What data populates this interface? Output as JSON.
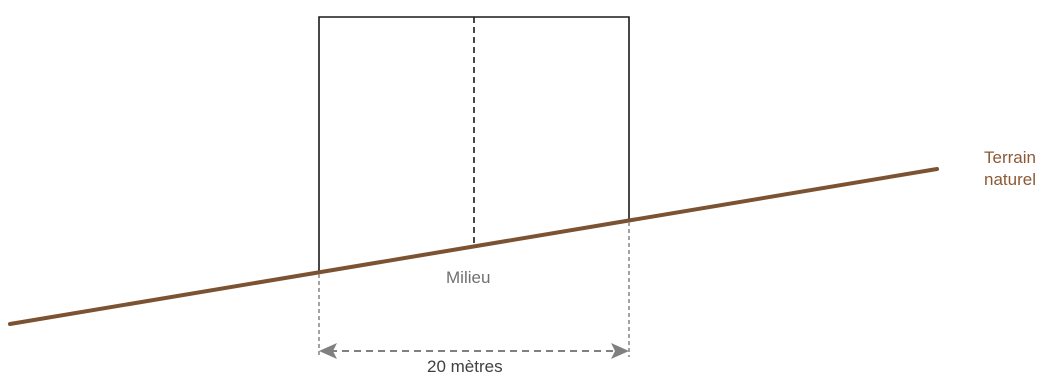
{
  "labels": {
    "terrain_line1": "Terrain",
    "terrain_line2": "naturel",
    "milieu": "Milieu",
    "width": "20 mètres"
  },
  "colors": {
    "terrain": "#7b5232",
    "terrain_label": "#8b5a35",
    "building": "#1a1a1a",
    "dimension": "#808080",
    "label_gray": "#707070"
  },
  "icons": {
    "dimension_arrows": "double-headed-arrow"
  }
}
